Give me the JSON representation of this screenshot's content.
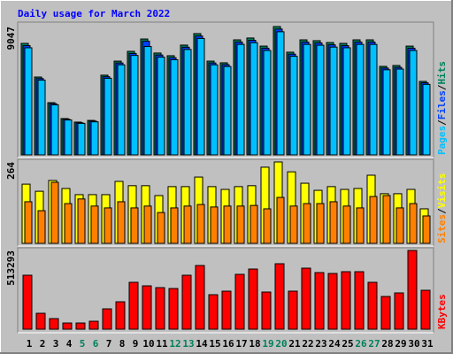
{
  "chart_data": [
    {
      "type": "bar",
      "title": "Daily usage for March 2022",
      "title_color": "#0000ff",
      "ylim": [
        0,
        9047
      ],
      "yticks": [
        9047
      ],
      "legend_separator": "/",
      "series": [
        {
          "name": "Hits",
          "color": "#00805c",
          "values": [
            7860,
            5490,
            3680,
            2560,
            2310,
            2430,
            5620,
            6610,
            7300,
            8170,
            7180,
            6990,
            7740,
            8550,
            6610,
            6490,
            8110,
            8240,
            7670,
            9047,
            7240,
            8110,
            8050,
            7920,
            7860,
            8110,
            8110,
            6240,
            6300,
            7670,
            5180
          ]
        },
        {
          "name": "Files",
          "color": "#0040ff",
          "values": [
            7700,
            5380,
            3610,
            2510,
            2260,
            2380,
            5510,
            6480,
            7150,
            8010,
            7040,
            6850,
            7590,
            8380,
            6480,
            6360,
            7950,
            8080,
            7520,
            8870,
            7100,
            7950,
            7890,
            7760,
            7700,
            7950,
            7950,
            6120,
            6170,
            7520,
            5080
          ]
        },
        {
          "name": "Pages",
          "color": "#00c0ff",
          "values": [
            7550,
            5270,
            3530,
            2460,
            2220,
            2330,
            5400,
            6350,
            7010,
            7640,
            6890,
            6710,
            7430,
            8210,
            6350,
            6230,
            7790,
            7910,
            7360,
            8680,
            6950,
            7790,
            7730,
            7600,
            7550,
            7790,
            7790,
            6000,
            6050,
            7360,
            4970
          ]
        }
      ]
    },
    {
      "type": "bar",
      "ylim": [
        0,
        264
      ],
      "yticks": [
        264
      ],
      "legend_separator": "/",
      "series": [
        {
          "name": "Visits",
          "color": "#ffff00",
          "values": [
            192,
            169,
            204,
            178,
            158,
            158,
            158,
            201,
            187,
            187,
            155,
            184,
            184,
            215,
            184,
            175,
            184,
            187,
            247,
            264,
            232,
            195,
            172,
            184,
            175,
            178,
            221,
            161,
            161,
            175,
            112
          ]
        },
        {
          "name": "Sites",
          "color": "#ff8000",
          "values": [
            135,
            106,
            198,
            129,
            144,
            121,
            115,
            135,
            115,
            121,
            100,
            115,
            121,
            126,
            118,
            121,
            121,
            123,
            112,
            149,
            121,
            129,
            129,
            135,
            121,
            115,
            152,
            155,
            115,
            129,
            89
          ]
        }
      ]
    },
    {
      "type": "bar",
      "ylim": [
        0,
        513293
      ],
      "yticks": [
        513293
      ],
      "categories": [
        "1",
        "2",
        "3",
        "4",
        "5",
        "6",
        "7",
        "8",
        "9",
        "10",
        "11",
        "12",
        "13",
        "14",
        "15",
        "16",
        "17",
        "18",
        "19",
        "20",
        "21",
        "22",
        "23",
        "24",
        "25",
        "26",
        "27",
        "28",
        "29",
        "30",
        "31"
      ],
      "category_colors": [
        "#000000",
        "#000000",
        "#000000",
        "#000000",
        "#00805c",
        "#00805c",
        "#000000",
        "#000000",
        "#000000",
        "#000000",
        "#000000",
        "#00805c",
        "#00805c",
        "#000000",
        "#000000",
        "#000000",
        "#000000",
        "#000000",
        "#00805c",
        "#00805c",
        "#000000",
        "#000000",
        "#000000",
        "#000000",
        "#000000",
        "#00805c",
        "#00805c",
        "#000000",
        "#000000",
        "#000000",
        "#000000"
      ],
      "series": [
        {
          "name": "KBytes",
          "color": "#ff0000",
          "values": [
            351800,
            103800,
            69200,
            40370,
            40370,
            51900,
            132640,
            178780,
            305650,
            282580,
            271050,
            265280,
            351790,
            415220,
            224910,
            247980,
            357550,
            392150,
            242210,
            426760,
            247980,
            397920,
            369090,
            363320,
            374860,
            374860,
            305650,
            213380,
            236450,
            513293,
            253750
          ]
        }
      ]
    }
  ]
}
